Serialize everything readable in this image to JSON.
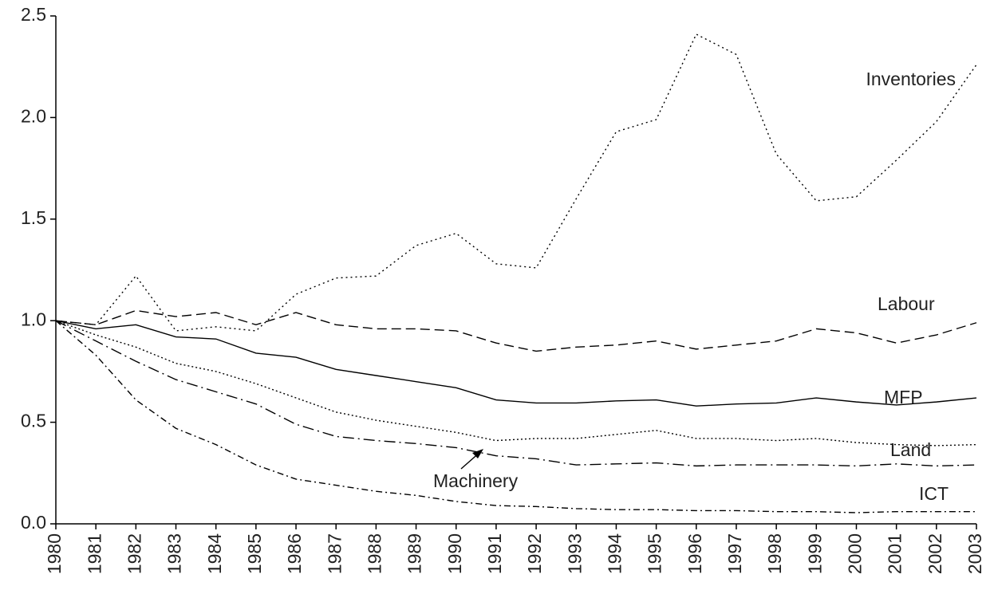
{
  "chart_data": {
    "type": "line",
    "categories": [
      "1980",
      "1981",
      "1982",
      "1983",
      "1984",
      "1985",
      "1986",
      "1987",
      "1988",
      "1989",
      "1990",
      "1991",
      "1992",
      "1993",
      "1994",
      "1995",
      "1996",
      "1997",
      "1998",
      "1999",
      "2000",
      "2001",
      "2002",
      "2003"
    ],
    "series": [
      {
        "name": "Inventories",
        "color": "#000000",
        "line_style": "dotted",
        "values": [
          1.0,
          0.98,
          1.22,
          0.95,
          0.97,
          0.95,
          1.13,
          1.21,
          1.22,
          1.37,
          1.43,
          1.28,
          1.26,
          1.6,
          1.93,
          1.99,
          2.41,
          2.31,
          1.82,
          1.59,
          1.61,
          1.79,
          1.98,
          2.26
        ]
      },
      {
        "name": "Labour",
        "color": "#000000",
        "line_style": "dashed",
        "values": [
          1.0,
          0.98,
          1.05,
          1.02,
          1.04,
          0.98,
          1.04,
          0.98,
          0.96,
          0.96,
          0.95,
          0.89,
          0.85,
          0.87,
          0.88,
          0.9,
          0.86,
          0.88,
          0.9,
          0.96,
          0.94,
          0.89,
          0.93,
          0.99
        ]
      },
      {
        "name": "MFP",
        "color": "#000000",
        "line_style": "solid",
        "values": [
          1.0,
          0.96,
          0.98,
          0.92,
          0.91,
          0.84,
          0.82,
          0.76,
          0.73,
          0.7,
          0.67,
          0.61,
          0.595,
          0.595,
          0.605,
          0.61,
          0.58,
          0.59,
          0.595,
          0.62,
          0.6,
          0.585,
          0.6,
          0.62
        ]
      },
      {
        "name": "Land",
        "color": "#000000",
        "line_style": "fine-dotted",
        "values": [
          1.0,
          0.93,
          0.87,
          0.79,
          0.75,
          0.69,
          0.62,
          0.55,
          0.51,
          0.48,
          0.45,
          0.41,
          0.42,
          0.42,
          0.44,
          0.46,
          0.42,
          0.42,
          0.41,
          0.42,
          0.4,
          0.39,
          0.385,
          0.39
        ]
      },
      {
        "name": "Machinery",
        "color": "#000000",
        "line_style": "long-dash-dot",
        "values": [
          1.0,
          0.9,
          0.8,
          0.71,
          0.65,
          0.59,
          0.49,
          0.43,
          0.41,
          0.395,
          0.375,
          0.335,
          0.32,
          0.29,
          0.295,
          0.3,
          0.285,
          0.29,
          0.29,
          0.29,
          0.285,
          0.295,
          0.285,
          0.29
        ]
      },
      {
        "name": "ICT",
        "color": "#000000",
        "line_style": "dash-dot",
        "values": [
          1.0,
          0.83,
          0.61,
          0.47,
          0.39,
          0.29,
          0.22,
          0.19,
          0.16,
          0.14,
          0.11,
          0.09,
          0.085,
          0.075,
          0.07,
          0.07,
          0.065,
          0.065,
          0.06,
          0.06,
          0.055,
          0.06,
          0.06,
          0.06
        ]
      }
    ],
    "ylim": [
      0,
      2.5
    ],
    "yticks": [
      {
        "value": 0,
        "label": "0.0"
      },
      0.5,
      {
        "value": 1,
        "label": "1.0"
      },
      1.5,
      {
        "value": 2,
        "label": "2.0"
      },
      2.5
    ],
    "grid": false
  }
}
